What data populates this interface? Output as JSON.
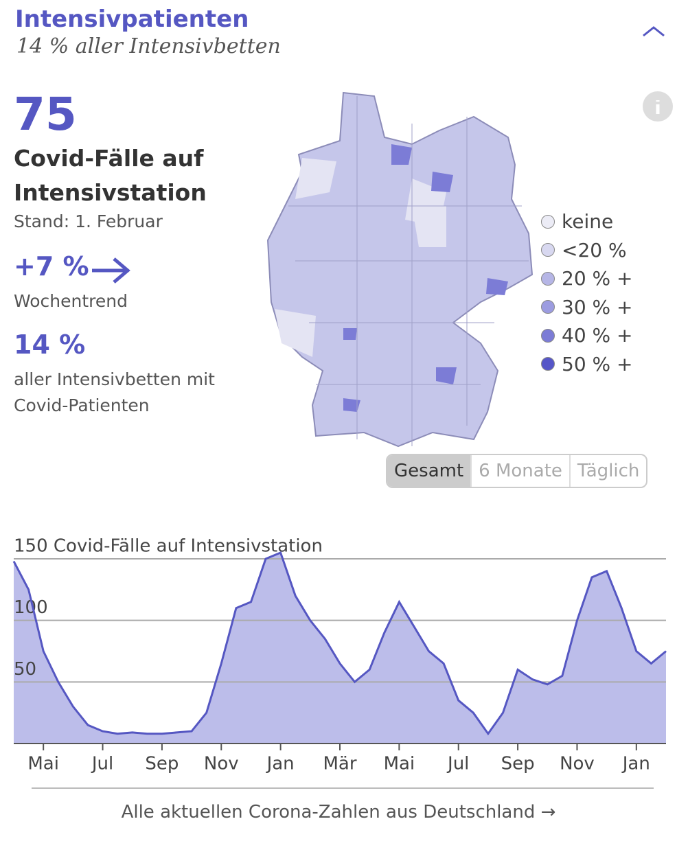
{
  "header": {
    "title": "Intensivpatienten",
    "subtitle": "14 % aller Intensivbetten"
  },
  "summary": {
    "value": "75",
    "label": "Covid-Fälle auf Intensivstation",
    "date": "Stand: 1. Februar",
    "trend": "+7 %",
    "trend_label": "Wochentrend",
    "share": "14 %",
    "share_label": "aller Intensivbetten mit Covid-Patienten"
  },
  "legend": {
    "items": [
      {
        "label": "keine",
        "color": "#ececf6"
      },
      {
        "label": "<20 %",
        "color": "#d8d8f0"
      },
      {
        "label": "20 % +",
        "color": "#b6b6e6"
      },
      {
        "label": "30 % +",
        "color": "#9c9ce0"
      },
      {
        "label": "40 % +",
        "color": "#7c7cd6"
      },
      {
        "label": "50 % +",
        "color": "#5656c8"
      }
    ]
  },
  "buttons": [
    "Gesamt",
    "6 Monate",
    "Täglich"
  ],
  "chart_data": {
    "type": "area",
    "color": "#5557c2",
    "fill": "#bcbdea",
    "categories": [
      null,
      null,
      "Mai",
      null,
      null,
      null,
      "Jul",
      null,
      null,
      null,
      "Sep",
      null,
      null,
      null,
      "Nov",
      null,
      null,
      null,
      "Jan",
      null,
      null,
      null,
      "Mär",
      null,
      null,
      null,
      "Mai",
      null,
      null,
      null,
      "Jul",
      null,
      null,
      null,
      "Sep",
      null,
      null,
      null,
      "Nov",
      null,
      null,
      null,
      "Jan",
      null,
      null
    ],
    "values": [
      148,
      125,
      75,
      50,
      30,
      15,
      10,
      8,
      9,
      8,
      8,
      9,
      10,
      25,
      65,
      110,
      115,
      150,
      155,
      120,
      100,
      85,
      65,
      50,
      60,
      90,
      115,
      95,
      75,
      65,
      35,
      25,
      8,
      25,
      60,
      52,
      48,
      55,
      100,
      135,
      140,
      110,
      75,
      65,
      75
    ],
    "ylim": [
      0,
      150
    ],
    "yticks": [
      50,
      100,
      {
        "value": 150,
        "label": "150 Covid-Fälle auf Intensivstation"
      }
    ],
    "grid": true
  },
  "footer_link": "Alle aktuellen Corona-Zahlen aus Deutschland →"
}
